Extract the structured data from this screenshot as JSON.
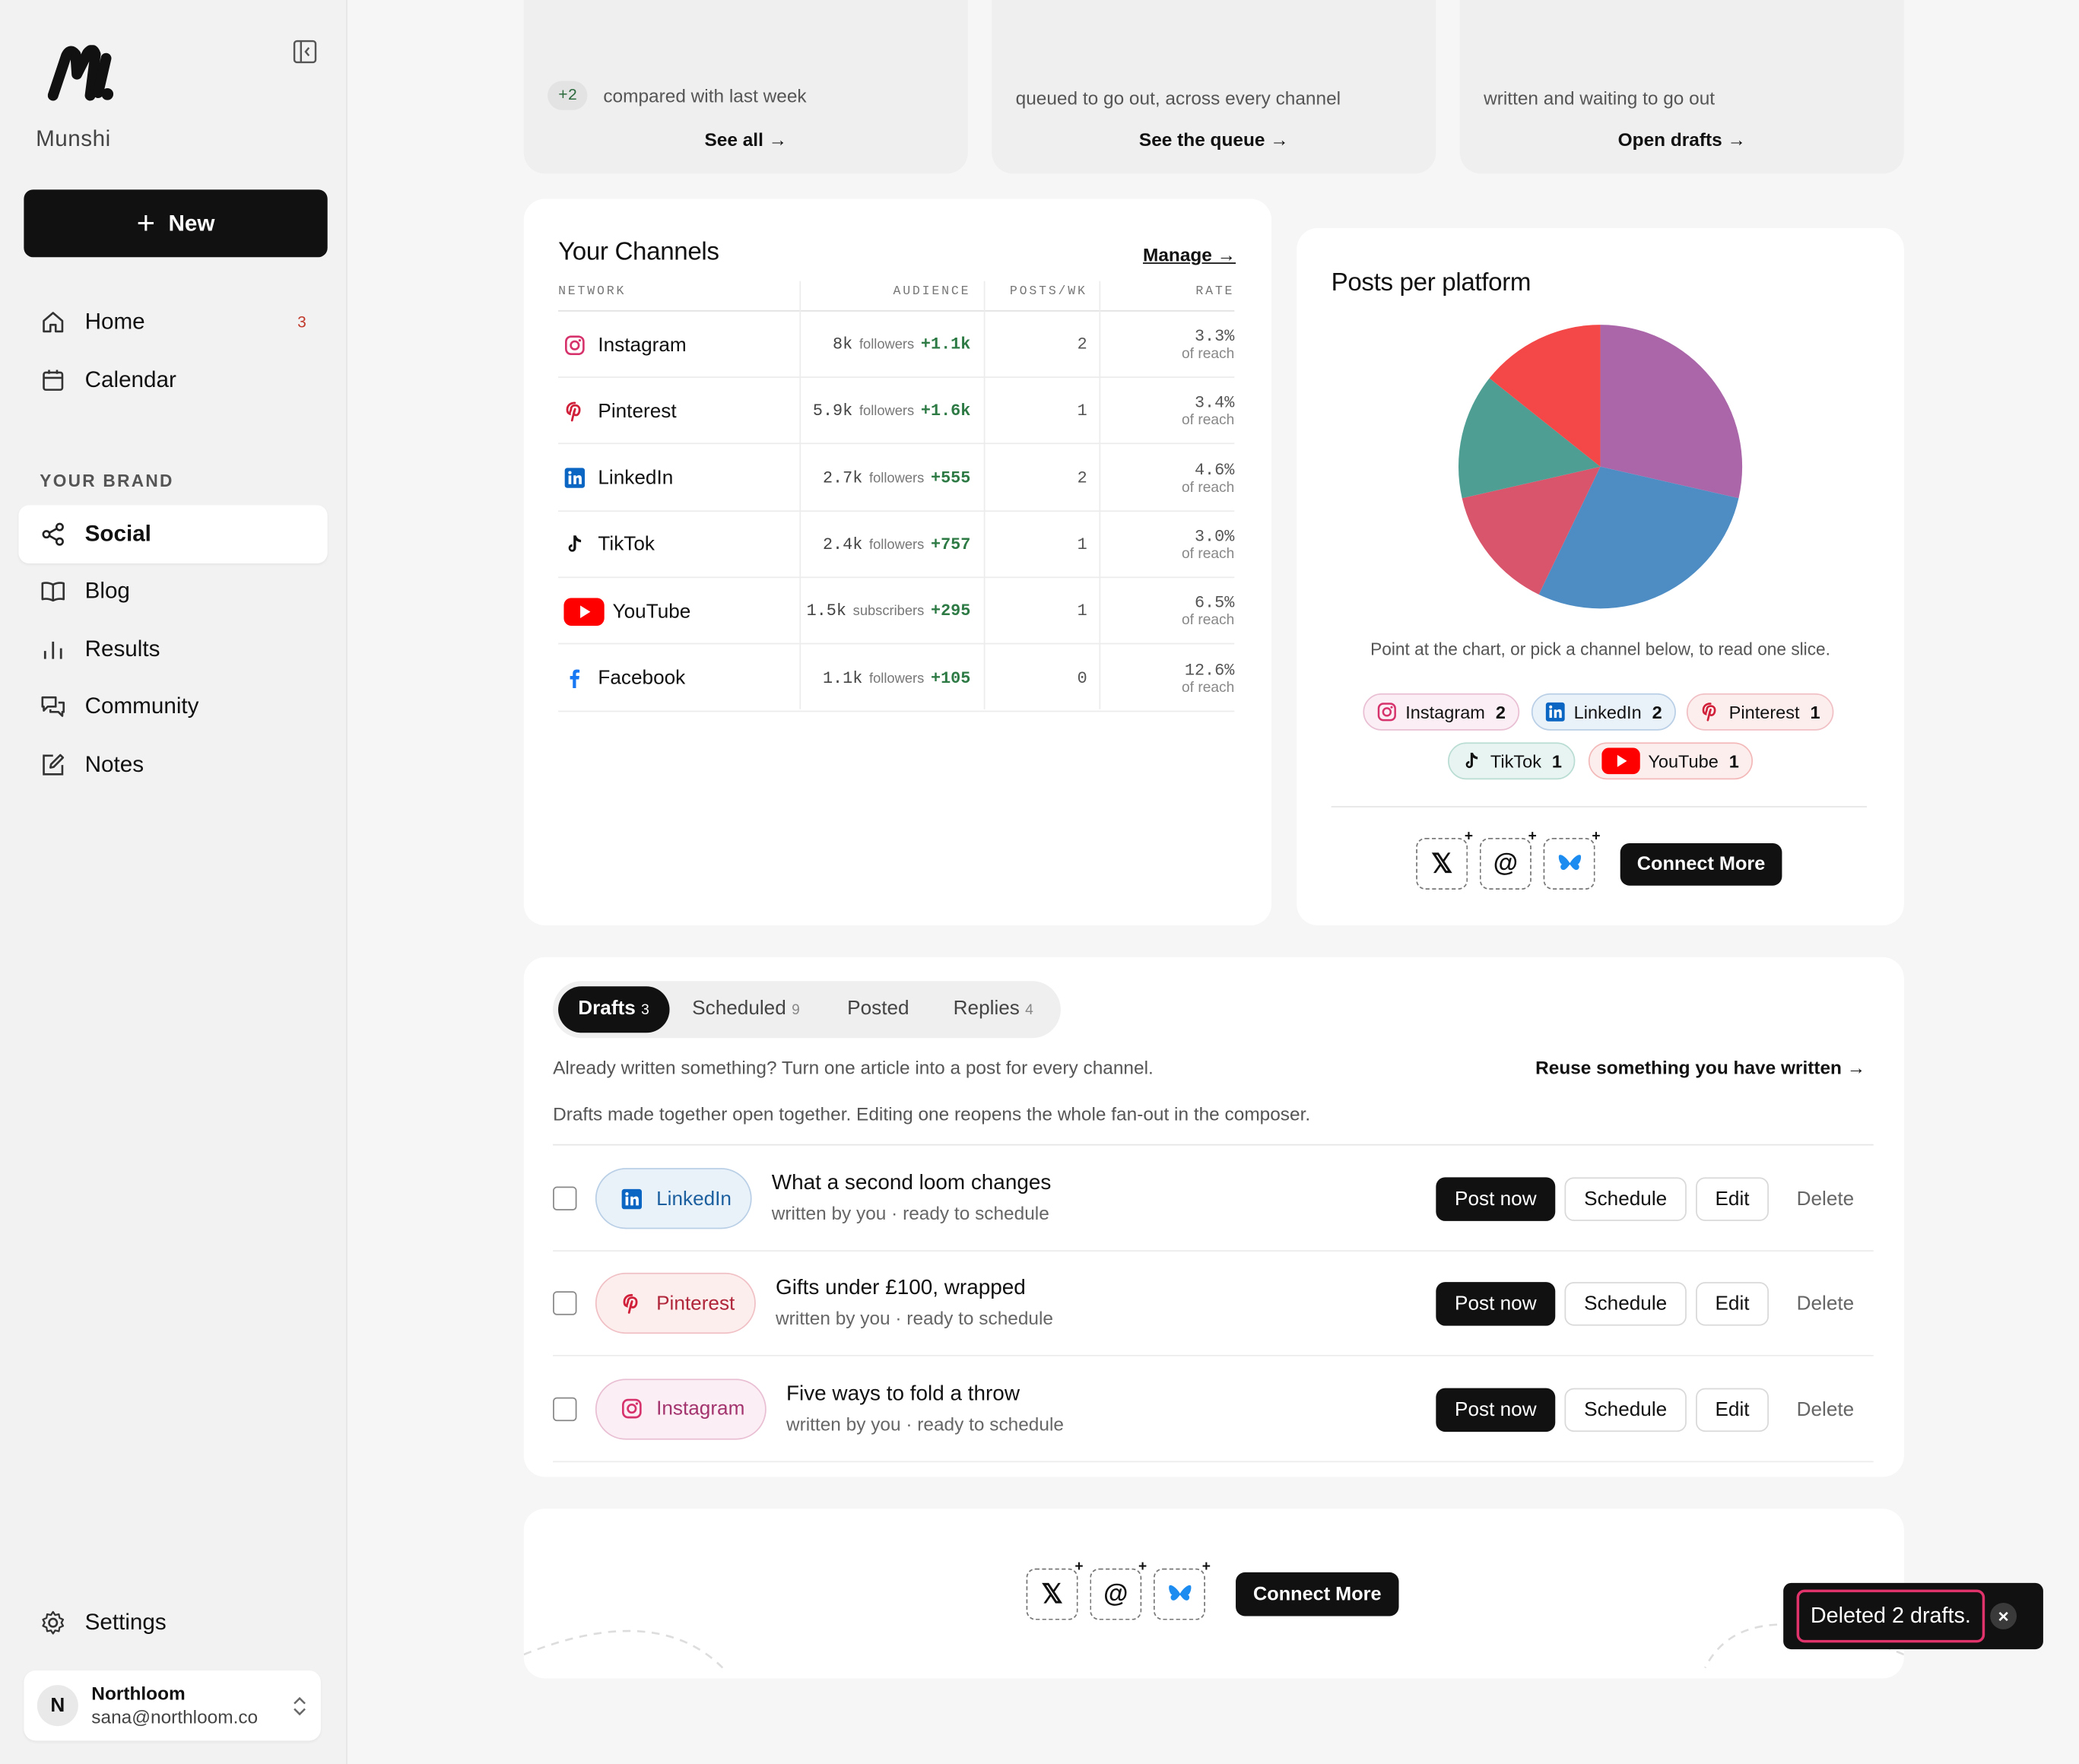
{
  "brand": {
    "name": "Munshi"
  },
  "sidebar": {
    "new_label": "New",
    "home": {
      "label": "Home",
      "badge": "3"
    },
    "calendar": {
      "label": "Calendar"
    },
    "section_label": "YOUR BRAND",
    "items": [
      {
        "label": "Social",
        "icon": "share-icon"
      },
      {
        "label": "Blog",
        "icon": "book-icon"
      },
      {
        "label": "Results",
        "icon": "bar-chart-icon"
      },
      {
        "label": "Community",
        "icon": "chat-icon"
      },
      {
        "label": "Notes",
        "icon": "edit-icon"
      }
    ],
    "settings_label": "Settings",
    "account": {
      "initial": "N",
      "name": "Northloom",
      "email": "sana@northloom.co"
    }
  },
  "top_cards": [
    {
      "delta": "+2",
      "text": "compared with last week",
      "link": "See all →"
    },
    {
      "text": "queued to go out, across every channel",
      "link": "See the queue →"
    },
    {
      "text": "written and waiting to go out",
      "link": "Open drafts →"
    }
  ],
  "channels": {
    "title": "Your Channels",
    "manage": "Manage →",
    "headers": [
      "NETWORK",
      "AUDIENCE",
      "POSTS/WK",
      "RATE"
    ],
    "rows": [
      {
        "network": "Instagram",
        "audience": "8k",
        "unit": "followers",
        "delta": "+1.1k",
        "posts": "2",
        "rate": "3.3%",
        "rate_sub": "of reach"
      },
      {
        "network": "Pinterest",
        "audience": "5.9k",
        "unit": "followers",
        "delta": "+1.6k",
        "posts": "1",
        "rate": "3.4%",
        "rate_sub": "of reach"
      },
      {
        "network": "LinkedIn",
        "audience": "2.7k",
        "unit": "followers",
        "delta": "+555",
        "posts": "2",
        "rate": "4.6%",
        "rate_sub": "of reach"
      },
      {
        "network": "TikTok",
        "audience": "2.4k",
        "unit": "followers",
        "delta": "+757",
        "posts": "1",
        "rate": "3.0%",
        "rate_sub": "of reach"
      },
      {
        "network": "YouTube",
        "audience": "1.5k",
        "unit": "subscribers",
        "delta": "+295",
        "posts": "1",
        "rate": "6.5%",
        "rate_sub": "of reach"
      },
      {
        "network": "Facebook",
        "audience": "1.1k",
        "unit": "followers",
        "delta": "+105",
        "posts": "0",
        "rate": "12.6%",
        "rate_sub": "of reach"
      }
    ]
  },
  "pie": {
    "title": "Posts per platform",
    "hint": "Point at the chart, or pick a channel below, to read one slice.",
    "chips": [
      {
        "name": "Instagram",
        "count": "2"
      },
      {
        "name": "LinkedIn",
        "count": "2"
      },
      {
        "name": "Pinterest",
        "count": "1"
      },
      {
        "name": "TikTok",
        "count": "1"
      },
      {
        "name": "YouTube",
        "count": "1"
      }
    ],
    "connect_label": "Connect More"
  },
  "chart_data": {
    "type": "pie",
    "categories": [
      "Instagram",
      "LinkedIn",
      "Pinterest",
      "TikTok",
      "YouTube"
    ],
    "values": [
      2,
      2,
      1,
      1,
      1
    ],
    "colors": [
      "#aa66a8",
      "#4e8dc4",
      "#d9556b",
      "#4f9e94",
      "#f44848"
    ]
  },
  "drafts": {
    "tabs": [
      {
        "label": "Drafts",
        "count": "3"
      },
      {
        "label": "Scheduled",
        "count": "9"
      },
      {
        "label": "Posted",
        "count": ""
      },
      {
        "label": "Replies",
        "count": "4"
      }
    ],
    "intro": "Already written something? Turn one article into a post for every channel.",
    "reuse": "Reuse something you have written →",
    "note": "Drafts made together open together. Editing one reopens the whole fan-out in the composer.",
    "items": [
      {
        "channel": "LinkedIn",
        "title": "What a second loom changes",
        "meta": "written by you · ready to schedule"
      },
      {
        "channel": "Pinterest",
        "title": "Gifts under £100, wrapped",
        "meta": "written by you · ready to schedule"
      },
      {
        "channel": "Instagram",
        "title": "Five ways to fold a throw",
        "meta": "written by you · ready to schedule"
      }
    ],
    "actions": {
      "post": "Post now",
      "schedule": "Schedule",
      "edit": "Edit",
      "delete": "Delete"
    }
  },
  "footer_connect": "Connect More",
  "toast": {
    "text": "Deleted 2 drafts.",
    "close": "×"
  }
}
